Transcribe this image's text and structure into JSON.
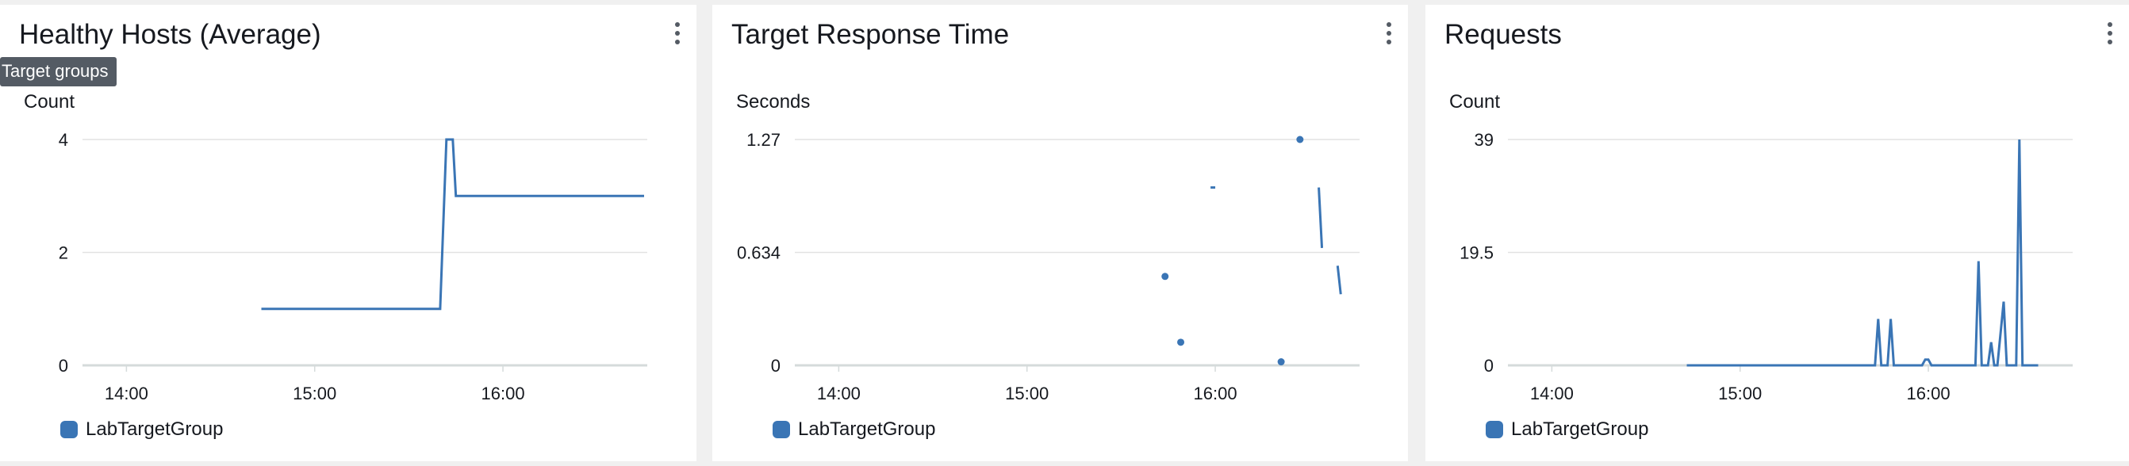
{
  "tooltip": "Target groups",
  "colors": {
    "series": "#3a75b5",
    "grid": "#e2e2e2",
    "axis": "#d5dbdb",
    "text": "#16191f"
  },
  "menu_icon": "kebab-vertical-icon",
  "widgets": [
    {
      "title": "Healthy Hosts (Average)",
      "legend": "LabTargetGroup",
      "chart_data": {
        "type": "line",
        "ylabel": "Count",
        "ylim": [
          0,
          4
        ],
        "yticks": [
          "0",
          "2",
          "4"
        ],
        "xticks": [
          "14:00",
          "15:00",
          "16:00"
        ],
        "xticks_min": [
          840,
          900,
          960
        ],
        "xlim_min": [
          826,
          1006
        ],
        "grid": true,
        "legend_position": "bottom-left",
        "series": [
          {
            "name": "LabTargetGroup",
            "x": [
              "14:43",
              "15:40",
              "15:42",
              "15:44",
              "15:45",
              "16:45"
            ],
            "x_min": [
              883,
              940,
              942,
              944,
              945,
              1005
            ],
            "y": [
              1,
              1,
              4,
              4,
              3,
              3
            ],
            "points": []
          }
        ]
      }
    },
    {
      "title": "Target Response Time",
      "legend": "LabTargetGroup",
      "chart_data": {
        "type": "line",
        "ylabel": "Seconds",
        "ylim": [
          0,
          1.27
        ],
        "yticks": [
          "0",
          "0.634",
          "1.27"
        ],
        "xticks": [
          "14:00",
          "15:00",
          "16:00"
        ],
        "xticks_min": [
          840,
          900,
          960
        ],
        "xlim_min": [
          826,
          1006
        ],
        "grid": true,
        "legend_position": "bottom-left",
        "series": [
          {
            "name": "LabTargetGroup",
            "segments": [
              {
                "x_min": [
                  958.5,
                  960
                ],
                "y": [
                  1.0,
                  1.0
                ]
              },
              {
                "x_min": [
                  993,
                  994
                ],
                "y": [
                  1.0,
                  0.66
                ]
              },
              {
                "x_min": [
                  999,
                  1000
                ],
                "y": [
                  0.56,
                  0.4
                ]
              }
            ],
            "points": [
              {
                "x_min": 944,
                "y": 0.5
              },
              {
                "x_min": 949,
                "y": 0.13
              },
              {
                "x_min": 981,
                "y": 0.02
              },
              {
                "x_min": 987,
                "y": 1.27
              }
            ]
          }
        ]
      }
    },
    {
      "title": "Requests",
      "legend": "LabTargetGroup",
      "chart_data": {
        "type": "line",
        "ylabel": "Count",
        "ylim": [
          0,
          39
        ],
        "yticks": [
          "0",
          "19.5",
          "39"
        ],
        "xticks": [
          "14:00",
          "15:00",
          "16:00"
        ],
        "xticks_min": [
          840,
          900,
          960
        ],
        "xlim_min": [
          826,
          1006
        ],
        "grid": true,
        "legend_position": "bottom-left",
        "series": [
          {
            "name": "LabTargetGroup",
            "x_min": [
              883,
              943,
              944,
              945,
              947,
              948,
              949,
              950,
              958,
              959,
              960,
              961,
              962,
              963,
              964,
              975,
              976,
              977,
              979,
              980,
              981,
              982,
              984,
              985,
              986,
              988,
              989,
              990,
              991,
              992,
              995
            ],
            "y": [
              0,
              0,
              8,
              0,
              0,
              8,
              0,
              0,
              0,
              1,
              1,
              0,
              0,
              0,
              0,
              0,
              18,
              0,
              0,
              4,
              0,
              0,
              11,
              0,
              0,
              0,
              39,
              0,
              0,
              0,
              0
            ],
            "points": []
          }
        ]
      }
    }
  ]
}
